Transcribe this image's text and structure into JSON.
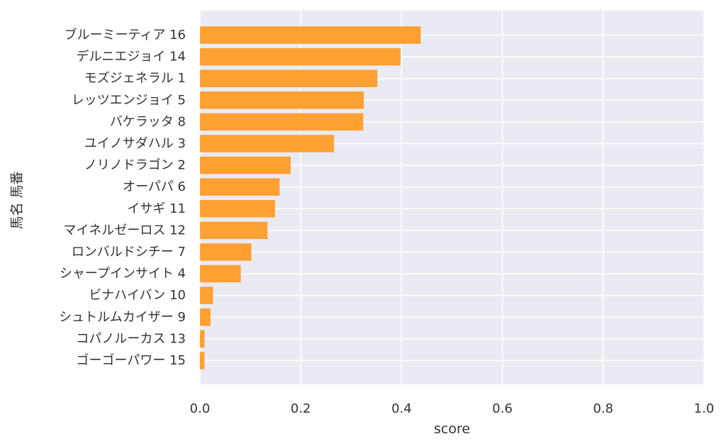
{
  "chart_data": {
    "type": "bar",
    "orientation": "horizontal",
    "categories": [
      "ブルーミーティア 16",
      "デルニエジョイ 14",
      "モズジェネラル 1",
      "レッツエンジョイ 5",
      "バケラッタ 8",
      "ユイノサダハル 3",
      "ノリノドラゴン 2",
      "オーパパ 6",
      "イサギ 11",
      "マイネルゼーロス 12",
      "ロンバルドシチー 7",
      "シャープインサイト 4",
      "ビナハイバン 10",
      "シュトルムカイザー 9",
      "コパノルーカス 13",
      "ゴーゴーパワー 15"
    ],
    "values": [
      0.438,
      0.398,
      0.352,
      0.325,
      0.324,
      0.266,
      0.18,
      0.158,
      0.149,
      0.134,
      0.102,
      0.081,
      0.026,
      0.021,
      0.009,
      0.009
    ],
    "xlabel": "score",
    "ylabel": "馬名 馬番",
    "xlim": [
      0,
      1.0
    ],
    "xticks": [
      "0.0",
      "0.2",
      "0.4",
      "0.6",
      "0.8",
      "1.0"
    ],
    "grid": true,
    "colors": {
      "bar": "#ff9922",
      "plot_background": "#eaeaf2",
      "grid": "#ffffff",
      "text": "#333333"
    }
  }
}
